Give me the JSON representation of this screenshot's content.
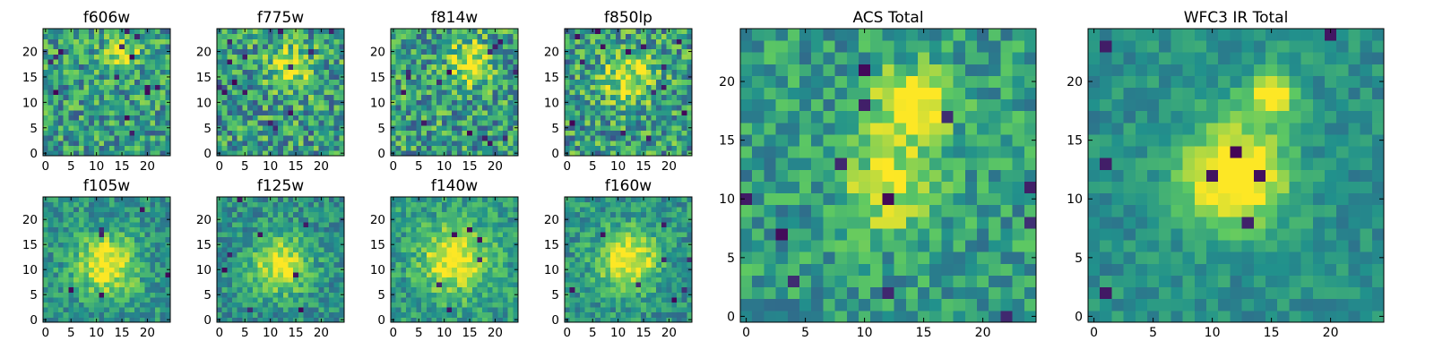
{
  "figure": {
    "type": "heatmap_grid",
    "colormap": "viridis",
    "colormap_stops": [
      "#440154",
      "#3b528b",
      "#21918c",
      "#5ec962",
      "#fde725"
    ]
  },
  "chart_data": [
    {
      "type": "heatmap",
      "id": "f606w",
      "title": "f606w",
      "grid": [
        25,
        25
      ],
      "xlim": [
        0,
        24
      ],
      "ylim": [
        0,
        24
      ],
      "xticks": [
        "0",
        "5",
        "10",
        "15",
        "20"
      ],
      "yticks": [
        "0",
        "5",
        "10",
        "15",
        "20"
      ],
      "features": {
        "center": [
          15,
          19
        ],
        "peak": 0.72,
        "sigma": 2.5,
        "noise": 0.28,
        "base": 0.55,
        "dark_spots": 14,
        "seed": 11
      }
    },
    {
      "type": "heatmap",
      "id": "f775w",
      "title": "f775w",
      "grid": [
        25,
        25
      ],
      "xlim": [
        0,
        24
      ],
      "ylim": [
        0,
        24
      ],
      "xticks": [
        "0",
        "5",
        "10",
        "15",
        "20"
      ],
      "yticks": [
        "0",
        "5",
        "10",
        "15",
        "20"
      ],
      "features": {
        "center": [
          14,
          17
        ],
        "peak": 0.74,
        "sigma": 3.0,
        "noise": 0.3,
        "base": 0.55,
        "dark_spots": 14,
        "seed": 23
      }
    },
    {
      "type": "heatmap",
      "id": "f814w",
      "title": "f814w",
      "grid": [
        25,
        25
      ],
      "xlim": [
        0,
        24
      ],
      "ylim": [
        0,
        24
      ],
      "xticks": [
        "0",
        "5",
        "10",
        "15",
        "20"
      ],
      "yticks": [
        "0",
        "5",
        "10",
        "15",
        "20"
      ],
      "features": {
        "center": [
          15,
          18
        ],
        "peak": 0.74,
        "sigma": 3.0,
        "noise": 0.3,
        "base": 0.55,
        "dark_spots": 14,
        "seed": 37
      }
    },
    {
      "type": "heatmap",
      "id": "f850lp",
      "title": "f850lp",
      "grid": [
        25,
        25
      ],
      "xlim": [
        0,
        24
      ],
      "ylim": [
        0,
        24
      ],
      "xticks": [
        "0",
        "5",
        "10",
        "15",
        "20"
      ],
      "yticks": [
        "0",
        "5",
        "10",
        "15",
        "20"
      ],
      "features": {
        "center": [
          12,
          15
        ],
        "peak": 0.72,
        "sigma": 3.5,
        "noise": 0.3,
        "base": 0.55,
        "dark_spots": 14,
        "seed": 41
      }
    },
    {
      "type": "heatmap",
      "id": "f105w",
      "title": "f105w",
      "grid": [
        25,
        25
      ],
      "xlim": [
        0,
        24
      ],
      "ylim": [
        0,
        24
      ],
      "xticks": [
        "0",
        "5",
        "10",
        "15",
        "20"
      ],
      "yticks": [
        "0",
        "5",
        "10",
        "15",
        "20"
      ],
      "features": {
        "center": [
          12,
          11
        ],
        "peak": 0.8,
        "sigma": 4.0,
        "noise": 0.18,
        "base": 0.52,
        "dark_spots": 6,
        "seed": 53
      }
    },
    {
      "type": "heatmap",
      "id": "f125w",
      "title": "f125w",
      "grid": [
        25,
        25
      ],
      "xlim": [
        0,
        24
      ],
      "ylim": [
        0,
        24
      ],
      "xticks": [
        "0",
        "5",
        "10",
        "15",
        "20"
      ],
      "yticks": [
        "0",
        "5",
        "10",
        "15",
        "20"
      ],
      "features": {
        "center": [
          12,
          11
        ],
        "peak": 0.74,
        "sigma": 4.0,
        "noise": 0.18,
        "base": 0.5,
        "dark_spots": 8,
        "seed": 67
      }
    },
    {
      "type": "heatmap",
      "id": "f140w",
      "title": "f140w",
      "grid": [
        25,
        25
      ],
      "xlim": [
        0,
        24
      ],
      "ylim": [
        0,
        24
      ],
      "xticks": [
        "0",
        "5",
        "10",
        "15",
        "20"
      ],
      "yticks": [
        "0",
        "5",
        "10",
        "15",
        "20"
      ],
      "features": {
        "center": [
          12,
          12
        ],
        "peak": 0.8,
        "sigma": 4.5,
        "noise": 0.18,
        "base": 0.55,
        "dark_spots": 6,
        "seed": 79
      }
    },
    {
      "type": "heatmap",
      "id": "f160w",
      "title": "f160w",
      "grid": [
        25,
        25
      ],
      "xlim": [
        0,
        24
      ],
      "ylim": [
        0,
        24
      ],
      "xticks": [
        "0",
        "5",
        "10",
        "15",
        "20"
      ],
      "yticks": [
        "0",
        "5",
        "10",
        "15",
        "20"
      ],
      "features": {
        "center": [
          12,
          12
        ],
        "peak": 0.82,
        "sigma": 4.0,
        "noise": 0.18,
        "base": 0.52,
        "dark_spots": 8,
        "seed": 83
      }
    },
    {
      "type": "heatmap",
      "id": "acs-total",
      "title": "ACS Total",
      "grid": [
        25,
        25
      ],
      "xlim": [
        0,
        24
      ],
      "ylim": [
        0,
        24
      ],
      "xticks": [
        "0",
        "5",
        "10",
        "15",
        "20"
      ],
      "yticks": [
        "0",
        "5",
        "10",
        "15",
        "20"
      ],
      "features": {
        "center": [
          14,
          18
        ],
        "peak": 0.9,
        "sigma": 2.2,
        "noise": 0.2,
        "base": 0.55,
        "dark_spots": 12,
        "seed": 97,
        "secondary_center": [
          12,
          11
        ],
        "secondary_peak": 0.78,
        "secondary_sigma": 2.5
      }
    },
    {
      "type": "heatmap",
      "id": "wfc3-ir-total",
      "title": "WFC3 IR Total",
      "grid": [
        25,
        25
      ],
      "xlim": [
        0,
        24
      ],
      "ylim": [
        0,
        24
      ],
      "xticks": [
        "0",
        "5",
        "10",
        "15",
        "20"
      ],
      "yticks": [
        "0",
        "5",
        "10",
        "15",
        "20"
      ],
      "features": {
        "center": [
          12,
          12
        ],
        "peak": 0.95,
        "sigma": 3.0,
        "noise": 0.12,
        "base": 0.5,
        "dark_spots": 8,
        "seed": 101,
        "secondary_center": [
          15,
          19
        ],
        "secondary_peak": 0.85,
        "secondary_sigma": 1.5
      }
    }
  ]
}
